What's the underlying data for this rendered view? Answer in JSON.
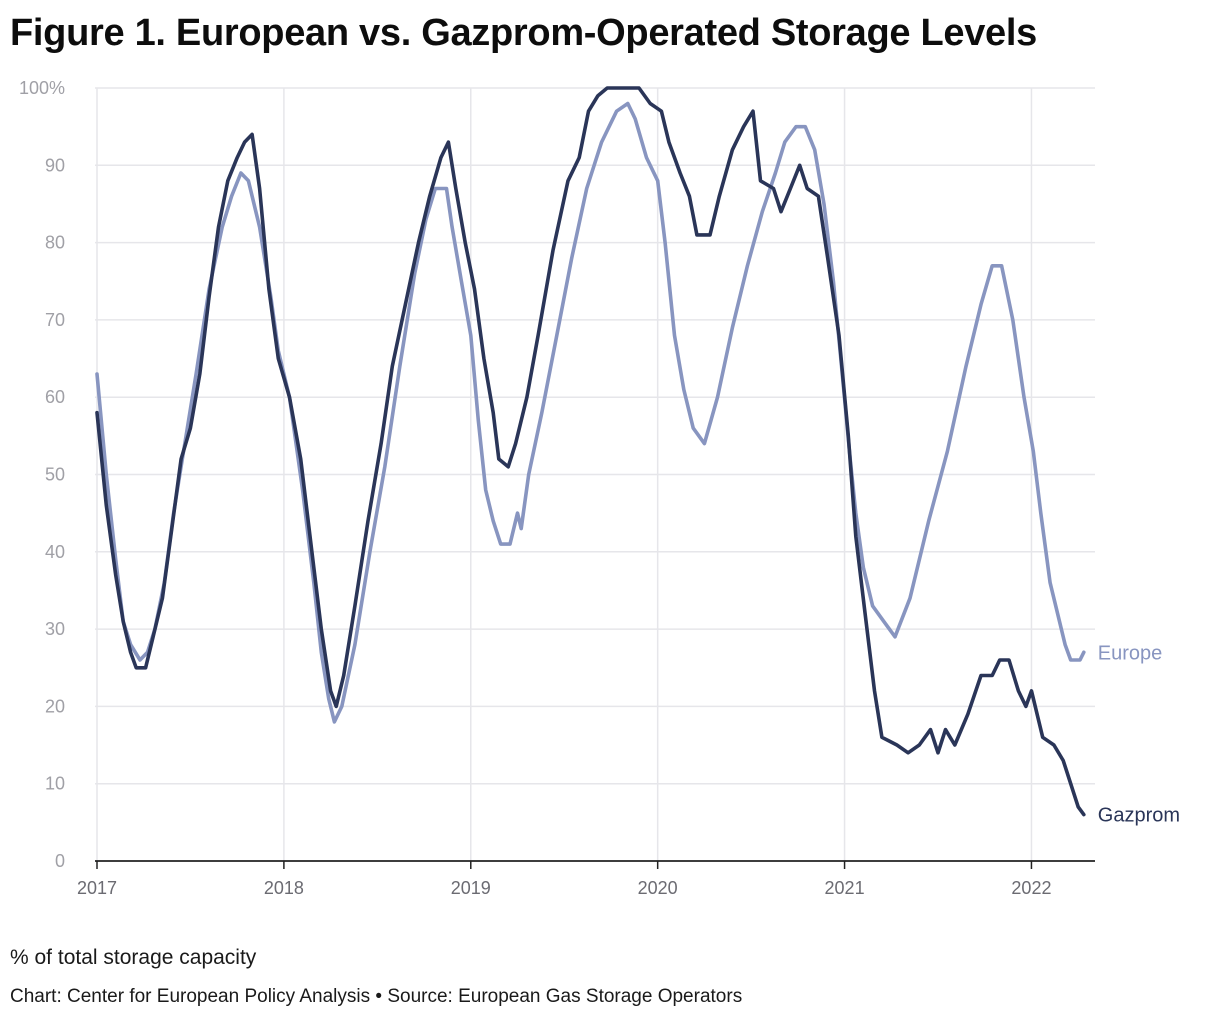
{
  "title": "Figure 1. European vs. Gazprom-Operated Storage Levels",
  "note": "% of total storage capacity",
  "source": "Chart: Center for European Policy Analysis • Source: European Gas Storage Operators",
  "chart_data": {
    "type": "line",
    "title": "Figure 1. European vs. Gazprom-Operated Storage Levels",
    "xlabel": "",
    "ylabel": "% of total storage capacity",
    "xlim": [
      2017,
      2022.34
    ],
    "ylim": [
      0,
      100
    ],
    "grid": true,
    "x_ticks": [
      2017,
      2018,
      2019,
      2020,
      2021,
      2022
    ],
    "x_tick_labels": [
      "2017",
      "2018",
      "2019",
      "2020",
      "2021",
      "2022"
    ],
    "y_ticks": [
      0,
      10,
      20,
      30,
      40,
      50,
      60,
      70,
      80,
      90,
      100
    ],
    "y_tick_labels": [
      "0",
      "10",
      "20",
      "30",
      "40",
      "50",
      "60",
      "70",
      "80",
      "90",
      "100%"
    ],
    "colors": {
      "europe": "#8895c0",
      "gazprom": "#2a3558",
      "grid": "#e6e6ea",
      "axis": "#222222"
    },
    "series": [
      {
        "name": "Europe",
        "label": "Europe",
        "color": "#8895c0",
        "points": [
          [
            2017.0,
            63
          ],
          [
            2017.05,
            50
          ],
          [
            2017.1,
            39
          ],
          [
            2017.14,
            31
          ],
          [
            2017.18,
            28
          ],
          [
            2017.23,
            26
          ],
          [
            2017.27,
            27
          ],
          [
            2017.31,
            30
          ],
          [
            2017.36,
            36
          ],
          [
            2017.41,
            45
          ],
          [
            2017.47,
            54
          ],
          [
            2017.53,
            63
          ],
          [
            2017.6,
            74
          ],
          [
            2017.67,
            82
          ],
          [
            2017.72,
            86
          ],
          [
            2017.77,
            89
          ],
          [
            2017.81,
            88
          ],
          [
            2017.87,
            82
          ],
          [
            2017.93,
            73
          ],
          [
            2017.97,
            66
          ],
          [
            2018.03,
            60
          ],
          [
            2018.1,
            48
          ],
          [
            2018.16,
            36
          ],
          [
            2018.2,
            27
          ],
          [
            2018.24,
            21
          ],
          [
            2018.27,
            18
          ],
          [
            2018.31,
            20
          ],
          [
            2018.38,
            28
          ],
          [
            2018.46,
            40
          ],
          [
            2018.54,
            51
          ],
          [
            2018.62,
            64
          ],
          [
            2018.7,
            76
          ],
          [
            2018.76,
            83
          ],
          [
            2018.81,
            87
          ],
          [
            2018.87,
            87
          ],
          [
            2018.9,
            82
          ],
          [
            2018.95,
            75
          ],
          [
            2019.0,
            68
          ],
          [
            2019.04,
            57
          ],
          [
            2019.08,
            48
          ],
          [
            2019.12,
            44
          ],
          [
            2019.16,
            41
          ],
          [
            2019.21,
            41
          ],
          [
            2019.25,
            45
          ],
          [
            2019.27,
            43
          ],
          [
            2019.31,
            50
          ],
          [
            2019.38,
            58
          ],
          [
            2019.46,
            68
          ],
          [
            2019.54,
            78
          ],
          [
            2019.62,
            87
          ],
          [
            2019.7,
            93
          ],
          [
            2019.78,
            97
          ],
          [
            2019.84,
            98
          ],
          [
            2019.88,
            96
          ],
          [
            2019.94,
            91
          ],
          [
            2020.0,
            88
          ],
          [
            2020.04,
            80
          ],
          [
            2020.09,
            68
          ],
          [
            2020.14,
            61
          ],
          [
            2020.19,
            56
          ],
          [
            2020.25,
            54
          ],
          [
            2020.32,
            60
          ],
          [
            2020.4,
            69
          ],
          [
            2020.48,
            77
          ],
          [
            2020.56,
            84
          ],
          [
            2020.63,
            89
          ],
          [
            2020.68,
            93
          ],
          [
            2020.74,
            95
          ],
          [
            2020.79,
            95
          ],
          [
            2020.84,
            92
          ],
          [
            2020.89,
            85
          ],
          [
            2020.94,
            75
          ],
          [
            2020.98,
            65
          ],
          [
            2021.03,
            52
          ],
          [
            2021.06,
            45
          ],
          [
            2021.1,
            38
          ],
          [
            2021.15,
            33
          ],
          [
            2021.21,
            31
          ],
          [
            2021.27,
            29
          ],
          [
            2021.35,
            34
          ],
          [
            2021.45,
            44
          ],
          [
            2021.55,
            53
          ],
          [
            2021.65,
            64
          ],
          [
            2021.73,
            72
          ],
          [
            2021.79,
            77
          ],
          [
            2021.84,
            77
          ],
          [
            2021.9,
            70
          ],
          [
            2021.96,
            60
          ],
          [
            2022.01,
            53
          ],
          [
            2022.05,
            45
          ],
          [
            2022.1,
            36
          ],
          [
            2022.15,
            31
          ],
          [
            2022.18,
            28
          ],
          [
            2022.21,
            26
          ],
          [
            2022.26,
            26
          ],
          [
            2022.28,
            27
          ]
        ]
      },
      {
        "name": "Gazprom",
        "label": "Gazprom",
        "color": "#2a3558",
        "points": [
          [
            2017.0,
            58
          ],
          [
            2017.05,
            46
          ],
          [
            2017.1,
            37
          ],
          [
            2017.14,
            31
          ],
          [
            2017.18,
            27
          ],
          [
            2017.21,
            25
          ],
          [
            2017.26,
            25
          ],
          [
            2017.3,
            29
          ],
          [
            2017.35,
            34
          ],
          [
            2017.4,
            43
          ],
          [
            2017.45,
            52
          ],
          [
            2017.5,
            56
          ],
          [
            2017.55,
            63
          ],
          [
            2017.6,
            73
          ],
          [
            2017.65,
            82
          ],
          [
            2017.7,
            88
          ],
          [
            2017.75,
            91
          ],
          [
            2017.79,
            93
          ],
          [
            2017.83,
            94
          ],
          [
            2017.87,
            87
          ],
          [
            2017.92,
            74
          ],
          [
            2017.97,
            65
          ],
          [
            2018.03,
            60
          ],
          [
            2018.09,
            52
          ],
          [
            2018.15,
            40
          ],
          [
            2018.2,
            30
          ],
          [
            2018.25,
            22
          ],
          [
            2018.28,
            20
          ],
          [
            2018.32,
            24
          ],
          [
            2018.38,
            33
          ],
          [
            2018.45,
            44
          ],
          [
            2018.52,
            54
          ],
          [
            2018.58,
            64
          ],
          [
            2018.65,
            72
          ],
          [
            2018.72,
            80
          ],
          [
            2018.78,
            86
          ],
          [
            2018.84,
            91
          ],
          [
            2018.88,
            93
          ],
          [
            2018.92,
            87
          ],
          [
            2018.97,
            80
          ],
          [
            2019.02,
            74
          ],
          [
            2019.07,
            65
          ],
          [
            2019.12,
            58
          ],
          [
            2019.15,
            52
          ],
          [
            2019.2,
            51
          ],
          [
            2019.24,
            54
          ],
          [
            2019.3,
            60
          ],
          [
            2019.36,
            68
          ],
          [
            2019.44,
            79
          ],
          [
            2019.52,
            88
          ],
          [
            2019.58,
            91
          ],
          [
            2019.63,
            97
          ],
          [
            2019.68,
            99
          ],
          [
            2019.73,
            100
          ],
          [
            2019.9,
            100
          ],
          [
            2019.96,
            98
          ],
          [
            2020.02,
            97
          ],
          [
            2020.06,
            93
          ],
          [
            2020.12,
            89
          ],
          [
            2020.17,
            86
          ],
          [
            2020.21,
            81
          ],
          [
            2020.28,
            81
          ],
          [
            2020.33,
            86
          ],
          [
            2020.4,
            92
          ],
          [
            2020.46,
            95
          ],
          [
            2020.51,
            97
          ],
          [
            2020.55,
            88
          ],
          [
            2020.62,
            87
          ],
          [
            2020.66,
            84
          ],
          [
            2020.71,
            87
          ],
          [
            2020.76,
            90
          ],
          [
            2020.8,
            87
          ],
          [
            2020.86,
            86
          ],
          [
            2020.91,
            78
          ],
          [
            2020.97,
            68
          ],
          [
            2021.02,
            55
          ],
          [
            2021.06,
            42
          ],
          [
            2021.11,
            32
          ],
          [
            2021.16,
            22
          ],
          [
            2021.2,
            16
          ],
          [
            2021.28,
            15
          ],
          [
            2021.34,
            14
          ],
          [
            2021.4,
            15
          ],
          [
            2021.46,
            17
          ],
          [
            2021.5,
            14
          ],
          [
            2021.54,
            17
          ],
          [
            2021.59,
            15
          ],
          [
            2021.66,
            19
          ],
          [
            2021.73,
            24
          ],
          [
            2021.79,
            24
          ],
          [
            2021.83,
            26
          ],
          [
            2021.88,
            26
          ],
          [
            2021.93,
            22
          ],
          [
            2021.97,
            20
          ],
          [
            2022.0,
            22
          ],
          [
            2022.06,
            16
          ],
          [
            2022.12,
            15
          ],
          [
            2022.17,
            13
          ],
          [
            2022.21,
            10
          ],
          [
            2022.25,
            7
          ],
          [
            2022.28,
            6
          ]
        ]
      }
    ]
  }
}
